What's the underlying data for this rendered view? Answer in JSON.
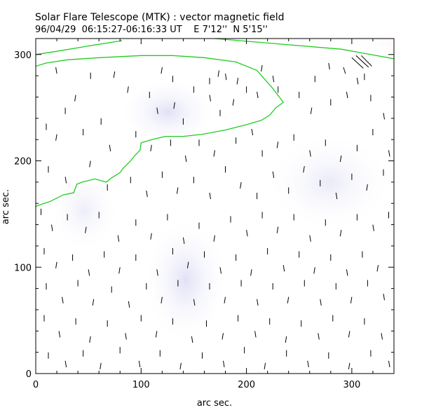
{
  "chart_data": {
    "type": "vector-field",
    "title": "Solar Flare Telescope (MTK) : vector magnetic field",
    "subtitle": "96/04/29  06:15:27-06:16:33 UT    E 7'12''  N 5'15''",
    "xlabel": "arc sec.",
    "ylabel": "arc sec.",
    "xlim": [
      0,
      340
    ],
    "ylim": [
      0,
      315
    ],
    "xticks": [
      0,
      100,
      200,
      300
    ],
    "yticks": [
      0,
      100,
      200,
      300
    ],
    "grid": false,
    "colors": {
      "contour": "#22cc22",
      "vector": "#000000",
      "positive_field": "#ff6666",
      "negative_field": "#c8c8ee"
    },
    "contour_lines": [
      {
        "points": [
          [
            0,
            289
          ],
          [
            10,
            292
          ],
          [
            30,
            295
          ],
          [
            60,
            297
          ],
          [
            100,
            299
          ],
          [
            130,
            299
          ],
          [
            160,
            297
          ],
          [
            190,
            293
          ],
          [
            210,
            285
          ],
          [
            225,
            268
          ],
          [
            235,
            255
          ],
          [
            228,
            250
          ],
          [
            222,
            243
          ],
          [
            214,
            238
          ],
          [
            200,
            234
          ],
          [
            180,
            229
          ],
          [
            158,
            225
          ],
          [
            140,
            223
          ],
          [
            123,
            223
          ],
          [
            110,
            220
          ],
          [
            100,
            217
          ],
          [
            99,
            210
          ],
          [
            94,
            205
          ],
          [
            90,
            200
          ],
          [
            83,
            193
          ],
          [
            80,
            189
          ],
          [
            72,
            184
          ],
          [
            67,
            180
          ],
          [
            56,
            183
          ],
          [
            44,
            180
          ],
          [
            39,
            178
          ],
          [
            36,
            170
          ],
          [
            26,
            168
          ],
          [
            14,
            162
          ],
          [
            2,
            158
          ],
          [
            0,
            157
          ]
        ]
      },
      {
        "points": [
          [
            0,
            300
          ],
          [
            20,
            303
          ],
          [
            50,
            308
          ],
          [
            82,
            313
          ]
        ]
      },
      {
        "points": [
          [
            170,
            315
          ],
          [
            230,
            310
          ],
          [
            290,
            305
          ],
          [
            340,
            296
          ]
        ]
      }
    ],
    "vectors": [
      [
        19,
        288,
        1,
        -6
      ],
      [
        52,
        283,
        0,
        -6
      ],
      [
        75,
        284,
        -1,
        -6
      ],
      [
        120,
        288,
        -1,
        -6
      ],
      [
        130,
        280,
        0,
        -6
      ],
      [
        165,
        278,
        0,
        -6
      ],
      [
        174,
        285,
        -1,
        -6
      ],
      [
        180,
        282,
        1,
        -6
      ],
      [
        192,
        278,
        -1,
        -6
      ],
      [
        215,
        290,
        -1,
        -6
      ],
      [
        225,
        280,
        1,
        -6
      ],
      [
        230,
        270,
        0,
        -6
      ],
      [
        265,
        280,
        0,
        -6
      ],
      [
        278,
        292,
        1,
        -6
      ],
      [
        292,
        288,
        2,
        -6
      ],
      [
        305,
        278,
        1,
        -6
      ],
      [
        312,
        282,
        0,
        -6
      ],
      [
        300,
        297,
        11,
        -10
      ],
      [
        304,
        299,
        12,
        -11
      ],
      [
        309,
        299,
        10,
        -10
      ],
      [
        28,
        250,
        0,
        -6
      ],
      [
        38,
        262,
        -1,
        -6
      ],
      [
        62,
        240,
        0,
        -6
      ],
      [
        88,
        270,
        -1,
        -6
      ],
      [
        108,
        265,
        0,
        -6
      ],
      [
        115,
        250,
        1,
        -6
      ],
      [
        132,
        255,
        -1,
        -6
      ],
      [
        140,
        240,
        0,
        -6
      ],
      [
        150,
        270,
        0,
        -6
      ],
      [
        165,
        262,
        1,
        -6
      ],
      [
        175,
        248,
        0,
        -6
      ],
      [
        188,
        258,
        -1,
        -6
      ],
      [
        200,
        270,
        0,
        -6
      ],
      [
        210,
        265,
        1,
        -6
      ],
      [
        250,
        265,
        0,
        -6
      ],
      [
        262,
        250,
        -1,
        -6
      ],
      [
        280,
        258,
        0,
        -6
      ],
      [
        295,
        265,
        1,
        -6
      ],
      [
        318,
        262,
        0,
        -6
      ],
      [
        330,
        245,
        1,
        -6
      ],
      [
        10,
        235,
        0,
        -6
      ],
      [
        20,
        225,
        -1,
        -6
      ],
      [
        45,
        230,
        0,
        -6
      ],
      [
        70,
        215,
        1,
        -6
      ],
      [
        95,
        228,
        0,
        -6
      ],
      [
        110,
        215,
        -1,
        -6
      ],
      [
        128,
        220,
        0,
        -6
      ],
      [
        142,
        205,
        1,
        -6
      ],
      [
        155,
        220,
        0,
        -6
      ],
      [
        170,
        210,
        -1,
        -6
      ],
      [
        190,
        222,
        0,
        -6
      ],
      [
        205,
        230,
        1,
        -6
      ],
      [
        215,
        210,
        0,
        -6
      ],
      [
        230,
        218,
        -1,
        -6
      ],
      [
        245,
        225,
        0,
        -6
      ],
      [
        260,
        210,
        1,
        -6
      ],
      [
        275,
        220,
        0,
        -6
      ],
      [
        290,
        205,
        -1,
        -6
      ],
      [
        305,
        215,
        0,
        -6
      ],
      [
        320,
        230,
        0,
        -6
      ],
      [
        335,
        210,
        1,
        -6
      ],
      [
        12,
        195,
        0,
        -6
      ],
      [
        28,
        185,
        1,
        -6
      ],
      [
        52,
        200,
        -1,
        -6
      ],
      [
        68,
        178,
        0,
        -6
      ],
      [
        90,
        185,
        0,
        -6
      ],
      [
        105,
        172,
        1,
        -6
      ],
      [
        120,
        190,
        0,
        -6
      ],
      [
        135,
        175,
        -1,
        -6
      ],
      [
        150,
        185,
        0,
        -6
      ],
      [
        165,
        170,
        1,
        -6
      ],
      [
        180,
        195,
        0,
        -6
      ],
      [
        195,
        180,
        -1,
        -6
      ],
      [
        210,
        170,
        0,
        -6
      ],
      [
        225,
        190,
        1,
        -6
      ],
      [
        240,
        175,
        0,
        -6
      ],
      [
        255,
        195,
        -1,
        -6
      ],
      [
        270,
        182,
        0,
        -6
      ],
      [
        285,
        170,
        1,
        -6
      ],
      [
        300,
        188,
        0,
        -6
      ],
      [
        315,
        178,
        -1,
        -6
      ],
      [
        330,
        192,
        0,
        -6
      ],
      [
        5,
        155,
        0,
        -6
      ],
      [
        15,
        140,
        1,
        -6
      ],
      [
        30,
        150,
        0,
        -6
      ],
      [
        48,
        138,
        -1,
        -6
      ],
      [
        60,
        152,
        0,
        -6
      ],
      [
        78,
        130,
        1,
        -6
      ],
      [
        95,
        145,
        0,
        -6
      ],
      [
        110,
        132,
        -1,
        -6
      ],
      [
        125,
        150,
        0,
        -6
      ],
      [
        140,
        128,
        1,
        -6
      ],
      [
        155,
        142,
        0,
        -6
      ],
      [
        170,
        130,
        -1,
        -6
      ],
      [
        185,
        148,
        0,
        -6
      ],
      [
        200,
        135,
        1,
        -6
      ],
      [
        215,
        152,
        0,
        -6
      ],
      [
        230,
        138,
        -1,
        -6
      ],
      [
        245,
        150,
        0,
        -6
      ],
      [
        260,
        130,
        1,
        -6
      ],
      [
        275,
        145,
        0,
        -6
      ],
      [
        290,
        135,
        -1,
        -6
      ],
      [
        305,
        150,
        0,
        -6
      ],
      [
        320,
        140,
        1,
        -6
      ],
      [
        335,
        152,
        0,
        -6
      ],
      [
        8,
        118,
        0,
        -6
      ],
      [
        20,
        105,
        -1,
        -6
      ],
      [
        35,
        112,
        0,
        -6
      ],
      [
        50,
        98,
        1,
        -6
      ],
      [
        65,
        115,
        0,
        -6
      ],
      [
        80,
        100,
        -1,
        -6
      ],
      [
        95,
        112,
        0,
        -6
      ],
      [
        115,
        98,
        1,
        -6
      ],
      [
        130,
        118,
        0,
        -6
      ],
      [
        145,
        105,
        -1,
        -6
      ],
      [
        160,
        115,
        0,
        -6
      ],
      [
        175,
        100,
        1,
        -6
      ],
      [
        190,
        112,
        0,
        -6
      ],
      [
        205,
        98,
        -1,
        -6
      ],
      [
        220,
        118,
        0,
        -6
      ],
      [
        235,
        102,
        1,
        -6
      ],
      [
        250,
        115,
        0,
        -6
      ],
      [
        265,
        100,
        -1,
        -6
      ],
      [
        280,
        112,
        0,
        -6
      ],
      [
        295,
        98,
        1,
        -6
      ],
      [
        310,
        115,
        0,
        -6
      ],
      [
        325,
        102,
        -1,
        -6
      ],
      [
        10,
        85,
        0,
        -6
      ],
      [
        25,
        72,
        1,
        -6
      ],
      [
        40,
        88,
        0,
        -6
      ],
      [
        55,
        70,
        -1,
        -6
      ],
      [
        72,
        82,
        0,
        -6
      ],
      [
        88,
        68,
        1,
        -6
      ],
      [
        105,
        85,
        0,
        -6
      ],
      [
        120,
        72,
        -1,
        -6
      ],
      [
        135,
        88,
        0,
        -6
      ],
      [
        150,
        70,
        1,
        -6
      ],
      [
        165,
        85,
        0,
        -6
      ],
      [
        180,
        72,
        -1,
        -6
      ],
      [
        195,
        88,
        0,
        -6
      ],
      [
        210,
        70,
        1,
        -6
      ],
      [
        225,
        85,
        0,
        -6
      ],
      [
        240,
        72,
        -1,
        -6
      ],
      [
        255,
        88,
        0,
        -6
      ],
      [
        270,
        70,
        1,
        -6
      ],
      [
        285,
        85,
        0,
        -6
      ],
      [
        300,
        72,
        -1,
        -6
      ],
      [
        315,
        88,
        0,
        -6
      ],
      [
        330,
        75,
        1,
        -6
      ],
      [
        8,
        55,
        0,
        -6
      ],
      [
        22,
        40,
        1,
        -6
      ],
      [
        38,
        52,
        0,
        -6
      ],
      [
        52,
        35,
        -1,
        -6
      ],
      [
        68,
        50,
        0,
        -6
      ],
      [
        85,
        38,
        1,
        -6
      ],
      [
        100,
        55,
        0,
        -6
      ],
      [
        115,
        40,
        -1,
        -6
      ],
      [
        130,
        52,
        0,
        -6
      ],
      [
        148,
        35,
        1,
        -6
      ],
      [
        162,
        50,
        0,
        -6
      ],
      [
        178,
        38,
        -1,
        -6
      ],
      [
        192,
        55,
        0,
        -6
      ],
      [
        208,
        40,
        1,
        -6
      ],
      [
        222,
        52,
        0,
        -6
      ],
      [
        238,
        35,
        -1,
        -6
      ],
      [
        252,
        50,
        0,
        -6
      ],
      [
        268,
        38,
        1,
        -6
      ],
      [
        282,
        55,
        0,
        -6
      ],
      [
        298,
        40,
        -1,
        -6
      ],
      [
        312,
        52,
        0,
        -6
      ],
      [
        328,
        38,
        1,
        -6
      ],
      [
        12,
        20,
        0,
        -6
      ],
      [
        28,
        12,
        1,
        -6
      ],
      [
        45,
        22,
        0,
        -6
      ],
      [
        62,
        10,
        -1,
        -6
      ],
      [
        80,
        25,
        0,
        -6
      ],
      [
        98,
        12,
        1,
        -6
      ],
      [
        118,
        22,
        0,
        -6
      ],
      [
        138,
        10,
        -1,
        -6
      ],
      [
        158,
        20,
        0,
        -6
      ],
      [
        178,
        12,
        1,
        -6
      ],
      [
        198,
        25,
        0,
        -6
      ],
      [
        218,
        10,
        -1,
        -6
      ],
      [
        238,
        22,
        0,
        -6
      ],
      [
        258,
        12,
        1,
        -6
      ],
      [
        278,
        20,
        0,
        -6
      ],
      [
        298,
        10,
        -1,
        -6
      ],
      [
        318,
        22,
        0,
        -6
      ],
      [
        335,
        12,
        1,
        -6
      ]
    ]
  }
}
